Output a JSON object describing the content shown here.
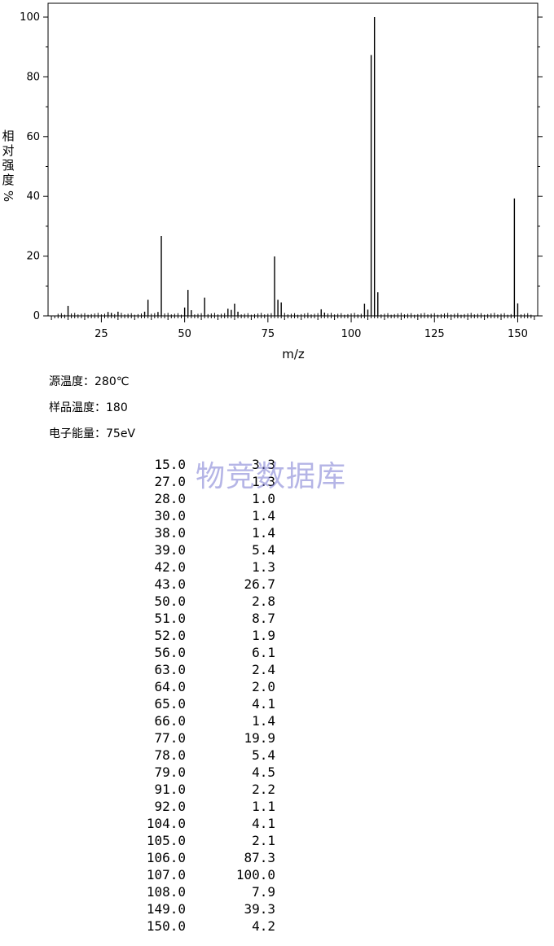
{
  "chart_data": {
    "type": "bar",
    "xlabel": "m/z",
    "ylabel_chars": [
      "相",
      "对",
      "强",
      "度"
    ],
    "ylabel_unit": "%",
    "xlim": [
      9,
      156
    ],
    "ylim": [
      0,
      100
    ],
    "x_ticks": [
      25,
      50,
      75,
      100,
      125,
      150
    ],
    "y_ticks": [
      0,
      20,
      40,
      60,
      80,
      100
    ],
    "grid": false,
    "peaks": [
      {
        "x": 15,
        "y": 3.3
      },
      {
        "x": 27,
        "y": 1.3
      },
      {
        "x": 28,
        "y": 1.0
      },
      {
        "x": 30,
        "y": 1.4
      },
      {
        "x": 38,
        "y": 1.4
      },
      {
        "x": 39,
        "y": 5.4
      },
      {
        "x": 42,
        "y": 1.3
      },
      {
        "x": 43,
        "y": 26.7
      },
      {
        "x": 50,
        "y": 2.8
      },
      {
        "x": 51,
        "y": 8.7
      },
      {
        "x": 52,
        "y": 1.9
      },
      {
        "x": 56,
        "y": 6.1
      },
      {
        "x": 63,
        "y": 2.4
      },
      {
        "x": 64,
        "y": 2.0
      },
      {
        "x": 65,
        "y": 4.1
      },
      {
        "x": 66,
        "y": 1.4
      },
      {
        "x": 77,
        "y": 19.9
      },
      {
        "x": 78,
        "y": 5.4
      },
      {
        "x": 79,
        "y": 4.5
      },
      {
        "x": 91,
        "y": 2.2
      },
      {
        "x": 92,
        "y": 1.1
      },
      {
        "x": 104,
        "y": 4.1
      },
      {
        "x": 105,
        "y": 2.1
      },
      {
        "x": 106,
        "y": 87.3
      },
      {
        "x": 107,
        "y": 100.0
      },
      {
        "x": 108,
        "y": 7.9
      },
      {
        "x": 149,
        "y": 39.3
      },
      {
        "x": 150,
        "y": 4.2
      }
    ]
  },
  "conditions": [
    "源温度：280℃",
    "样品温度：180",
    "电子能量：75eV"
  ],
  "table": [
    {
      "mz": "15.0",
      "intensity": "3.3"
    },
    {
      "mz": "27.0",
      "intensity": "1.3"
    },
    {
      "mz": "28.0",
      "intensity": "1.0"
    },
    {
      "mz": "30.0",
      "intensity": "1.4"
    },
    {
      "mz": "38.0",
      "intensity": "1.4"
    },
    {
      "mz": "39.0",
      "intensity": "5.4"
    },
    {
      "mz": "42.0",
      "intensity": "1.3"
    },
    {
      "mz": "43.0",
      "intensity": "26.7"
    },
    {
      "mz": "50.0",
      "intensity": "2.8"
    },
    {
      "mz": "51.0",
      "intensity": "8.7"
    },
    {
      "mz": "52.0",
      "intensity": "1.9"
    },
    {
      "mz": "56.0",
      "intensity": "6.1"
    },
    {
      "mz": "63.0",
      "intensity": "2.4"
    },
    {
      "mz": "64.0",
      "intensity": "2.0"
    },
    {
      "mz": "65.0",
      "intensity": "4.1"
    },
    {
      "mz": "66.0",
      "intensity": "1.4"
    },
    {
      "mz": "77.0",
      "intensity": "19.9"
    },
    {
      "mz": "78.0",
      "intensity": "5.4"
    },
    {
      "mz": "79.0",
      "intensity": "4.5"
    },
    {
      "mz": "91.0",
      "intensity": "2.2"
    },
    {
      "mz": "92.0",
      "intensity": "1.1"
    },
    {
      "mz": "104.0",
      "intensity": "4.1"
    },
    {
      "mz": "105.0",
      "intensity": "2.1"
    },
    {
      "mz": "106.0",
      "intensity": "87.3"
    },
    {
      "mz": "107.0",
      "intensity": "100.0"
    },
    {
      "mz": "108.0",
      "intensity": "7.9"
    },
    {
      "mz": "149.0",
      "intensity": "39.3"
    },
    {
      "mz": "150.0",
      "intensity": "4.2"
    }
  ],
  "watermark": "物竞数据库"
}
